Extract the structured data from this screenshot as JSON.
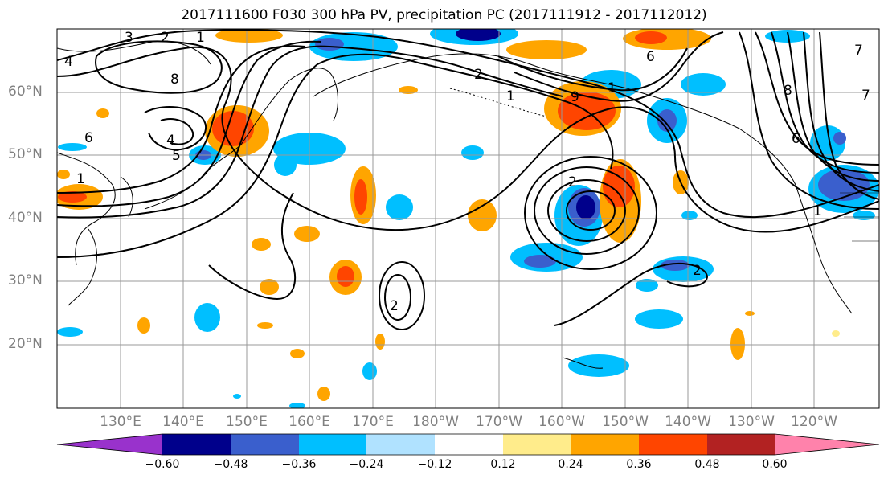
{
  "title": "2017111600 F030 300 hPa PV, precipitation PC (2017111912 - 2017112012)",
  "lat_labels": [
    "60°N",
    "50°N",
    "40°N",
    "30°N",
    "20°N"
  ],
  "lon_labels": [
    "130°E",
    "140°E",
    "150°E",
    "160°E",
    "170°E",
    "180°W",
    "170°W",
    "160°W",
    "150°W",
    "140°W",
    "130°W",
    "120°W"
  ],
  "colorbar": {
    "tick_labels": [
      "−0.60",
      "−0.48",
      "−0.36",
      "−0.24",
      "−0.12",
      "0.12",
      "0.24",
      "0.36",
      "0.48",
      "0.60"
    ],
    "colors": [
      "#9932cc",
      "#00008b",
      "#3a5fcd",
      "#00bfff",
      "#b0e2ff",
      "#ffffff",
      "#ffec8b",
      "#ffa500",
      "#ff4500",
      "#b22222",
      "#ff82ab"
    ]
  },
  "contour_labels": [
    "3",
    "2",
    "1",
    "4",
    "8",
    "6",
    "4",
    "5",
    "1",
    "2",
    "1",
    "9",
    "6",
    "1",
    "2",
    "2",
    "7",
    "8",
    "6",
    "7",
    "2",
    "1"
  ],
  "layers": {
    "shading": "precipitation PC",
    "contours": "300 hPa PV"
  }
}
